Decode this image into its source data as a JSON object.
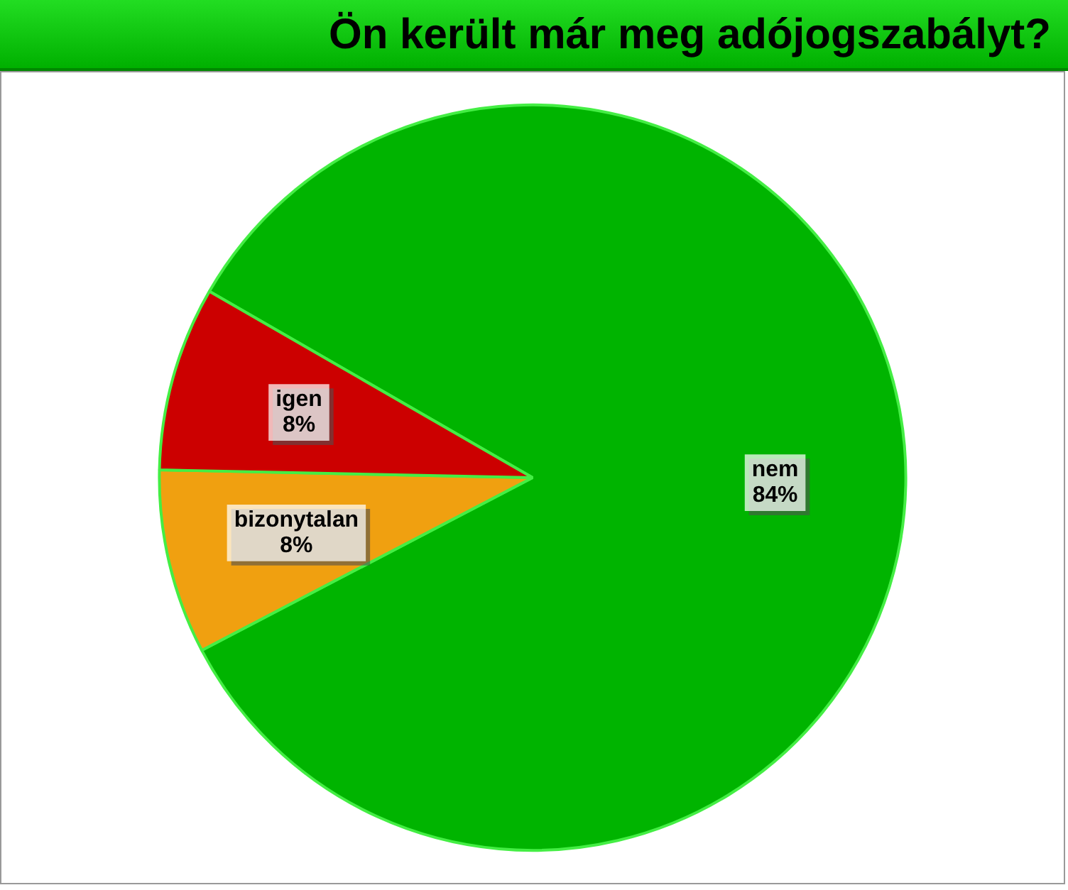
{
  "chart_data": {
    "type": "pie",
    "title": "Ön került már meg adójogszabályt?",
    "categories": [
      "nem",
      "bizonytalan",
      "igen"
    ],
    "values": [
      84,
      8,
      8
    ],
    "colors": [
      "#00b400",
      "#f0a010",
      "#cc0000"
    ],
    "value_labels": [
      "84%",
      "8%",
      "8%"
    ],
    "legend": false
  }
}
